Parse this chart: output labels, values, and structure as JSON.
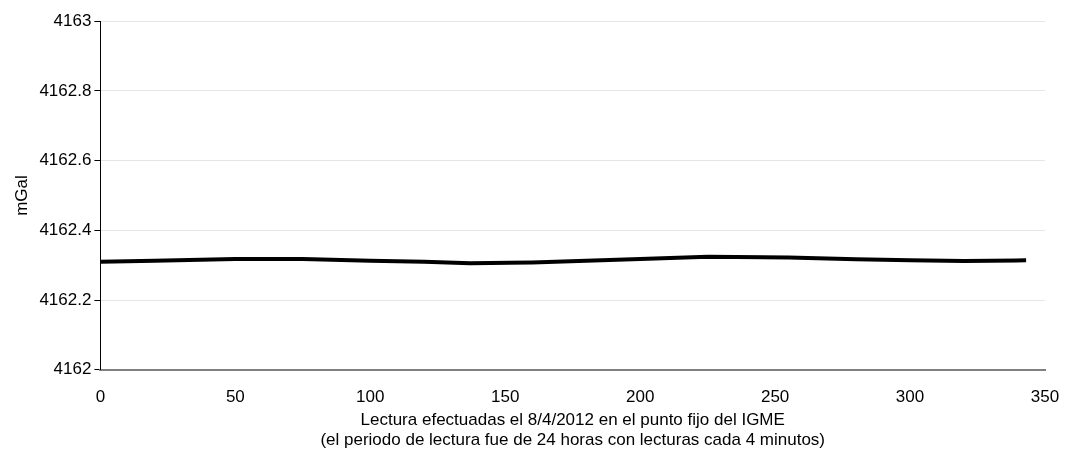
{
  "chart_data": {
    "type": "line",
    "ylabel": "mGal",
    "xlabel": "Lectura efectuadas el 8/4/2012 en el punto fijo del IGME\n(el periodo de lectura fue de 24 horas con lecturas cada 4 minutos)",
    "x": [
      0,
      20,
      50,
      75,
      100,
      120,
      137,
      160,
      180,
      200,
      225,
      255,
      280,
      300,
      320,
      343
    ],
    "series": [
      {
        "color": "#000000",
        "values": [
          4162.31,
          4162.313,
          4162.318,
          4162.318,
          4162.313,
          4162.31,
          4162.306,
          4162.308,
          4162.313,
          4162.318,
          4162.324,
          4162.322,
          4162.317,
          4162.314,
          4162.312,
          4162.314
        ]
      }
    ],
    "xlim": [
      0,
      350
    ],
    "xticks": [
      0,
      50,
      100,
      150,
      200,
      250,
      300,
      350
    ],
    "ylim": [
      4162,
      4163
    ],
    "yticks": [
      4162,
      4162.2,
      4162.4,
      4162.6,
      4162.8,
      4163
    ],
    "grid": "y",
    "legend": false,
    "marker": "none",
    "line_style": "solid"
  }
}
